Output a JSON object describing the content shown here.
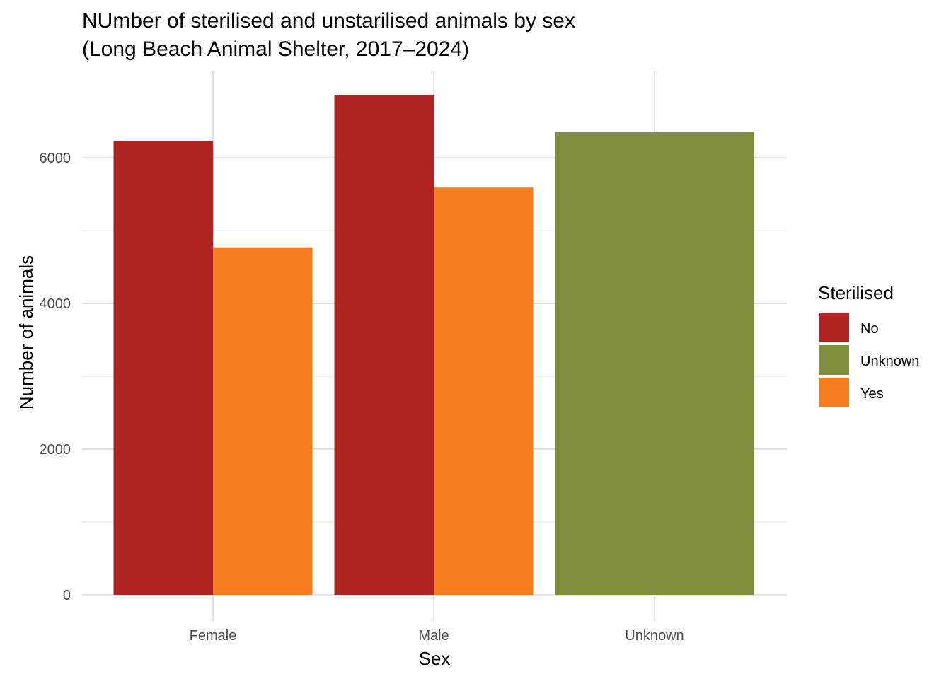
{
  "chart_data": {
    "type": "bar",
    "title": "NUmber of sterilised and unstarilised animals by sex",
    "subtitle": "(Long Beach Animal Shelter, 2017–2024)",
    "xlabel": "Sex",
    "ylabel": "Number of animals",
    "categories": [
      "Female",
      "Male",
      "Unknown"
    ],
    "ylim": [
      0,
      7000
    ],
    "yticks": [
      0,
      2000,
      4000,
      6000
    ],
    "grid": true,
    "legend": {
      "title": "Sterilised",
      "placement": "right",
      "entries": [
        "No",
        "Unknown",
        "Yes"
      ]
    },
    "colors": {
      "No": "#AF2320",
      "Unknown": "#818E3C",
      "Yes": "#F87D1F"
    },
    "series": [
      {
        "name": "No",
        "values": [
          6230,
          6860,
          null
        ]
      },
      {
        "name": "Yes",
        "values": [
          4770,
          5590,
          null
        ]
      },
      {
        "name": "Unknown",
        "values": [
          null,
          null,
          6350
        ]
      }
    ]
  }
}
